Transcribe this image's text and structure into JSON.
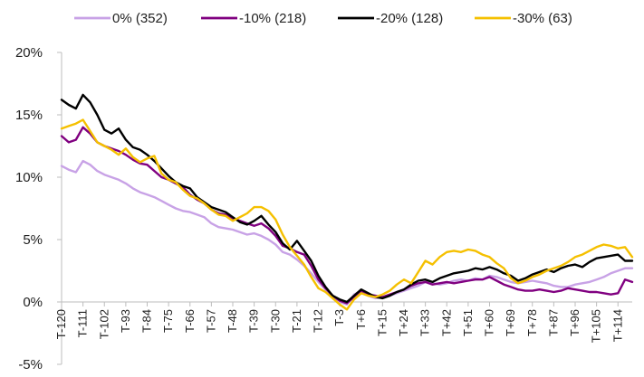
{
  "chart_data": {
    "type": "line",
    "title": "",
    "xlabel": "",
    "ylabel": "",
    "ylim": [
      -5,
      20
    ],
    "yticks": [
      -5,
      0,
      5,
      10,
      15,
      20
    ],
    "ytick_labels": [
      "-5%",
      "0%",
      "5%",
      "10%",
      "15%",
      "20%"
    ],
    "xlim": [
      -120,
      120
    ],
    "xticks": [
      -120,
      -111,
      -102,
      -93,
      -84,
      -75,
      -66,
      -57,
      -48,
      -39,
      -30,
      -21,
      -12,
      -3,
      6,
      15,
      24,
      33,
      42,
      51,
      60,
      69,
      78,
      87,
      96,
      105,
      114
    ],
    "xtick_labels": [
      "T-120",
      "T-111",
      "T-102",
      "T-93",
      "T-84",
      "T-75",
      "T-66",
      "T-57",
      "T-48",
      "T-39",
      "T-30",
      "T-21",
      "T-12",
      "T-3",
      "T+6",
      "T+15",
      "T+24",
      "T+33",
      "T+42",
      "T+51",
      "T+60",
      "T+69",
      "T+78",
      "T+87",
      "T+96",
      "T+105",
      "T+114"
    ],
    "legend_position": "top",
    "series": [
      {
        "name": "0% (352)",
        "color": "#c8a2e6",
        "x": [
          -120,
          -117,
          -114,
          -111,
          -108,
          -105,
          -102,
          -99,
          -96,
          -93,
          -90,
          -87,
          -84,
          -81,
          -78,
          -75,
          -72,
          -69,
          -66,
          -63,
          -60,
          -57,
          -54,
          -51,
          -48,
          -45,
          -42,
          -39,
          -36,
          -33,
          -30,
          -27,
          -24,
          -21,
          -18,
          -15,
          -12,
          -9,
          -6,
          -3,
          0,
          3,
          6,
          9,
          12,
          15,
          18,
          21,
          24,
          27,
          30,
          33,
          36,
          39,
          42,
          45,
          48,
          51,
          54,
          57,
          60,
          63,
          66,
          69,
          72,
          75,
          78,
          81,
          84,
          87,
          90,
          93,
          96,
          99,
          102,
          105,
          108,
          111,
          114,
          117,
          120
        ],
        "values": [
          10.9,
          10.6,
          10.4,
          11.3,
          11.0,
          10.5,
          10.2,
          10.0,
          9.8,
          9.5,
          9.1,
          8.8,
          8.6,
          8.4,
          8.1,
          7.8,
          7.5,
          7.3,
          7.2,
          7.0,
          6.8,
          6.3,
          6.0,
          5.9,
          5.8,
          5.6,
          5.4,
          5.5,
          5.3,
          5.0,
          4.6,
          4.0,
          3.8,
          3.4,
          2.9,
          2.3,
          1.6,
          1.0,
          0.3,
          0.0,
          -0.2,
          0.6,
          0.9,
          0.5,
          0.3,
          0.4,
          0.5,
          0.7,
          0.9,
          1.1,
          1.3,
          1.6,
          1.5,
          1.4,
          1.5,
          1.7,
          1.8,
          1.7,
          1.9,
          1.8,
          2.1,
          2.0,
          1.8,
          1.6,
          1.5,
          1.6,
          1.7,
          1.6,
          1.5,
          1.3,
          1.2,
          1.2,
          1.4,
          1.5,
          1.6,
          1.8,
          2.0,
          2.3,
          2.5,
          2.7,
          2.7
        ]
      },
      {
        "name": "-10% (218)",
        "color": "#800080",
        "x": [
          -120,
          -117,
          -114,
          -111,
          -108,
          -105,
          -102,
          -99,
          -96,
          -93,
          -90,
          -87,
          -84,
          -81,
          -78,
          -75,
          -72,
          -69,
          -66,
          -63,
          -60,
          -57,
          -54,
          -51,
          -48,
          -45,
          -42,
          -39,
          -36,
          -33,
          -30,
          -27,
          -24,
          -21,
          -18,
          -15,
          -12,
          -9,
          -6,
          -3,
          0,
          3,
          6,
          9,
          12,
          15,
          18,
          21,
          24,
          27,
          30,
          33,
          36,
          39,
          42,
          45,
          48,
          51,
          54,
          57,
          60,
          63,
          66,
          69,
          72,
          75,
          78,
          81,
          84,
          87,
          90,
          93,
          96,
          99,
          102,
          105,
          108,
          111,
          114,
          117,
          120
        ],
        "values": [
          13.3,
          12.8,
          13.0,
          14.0,
          13.5,
          12.8,
          12.5,
          12.3,
          12.1,
          11.8,
          11.4,
          11.1,
          11.0,
          10.5,
          10.0,
          9.8,
          9.5,
          9.2,
          8.6,
          8.2,
          7.9,
          7.4,
          7.1,
          7.0,
          6.7,
          6.5,
          6.3,
          6.1,
          6.3,
          5.9,
          5.3,
          4.5,
          4.3,
          4.0,
          3.8,
          2.9,
          1.8,
          1.1,
          0.5,
          0.1,
          -0.1,
          0.4,
          0.9,
          0.6,
          0.5,
          0.4,
          0.6,
          0.8,
          1.0,
          1.3,
          1.5,
          1.6,
          1.4,
          1.5,
          1.6,
          1.5,
          1.6,
          1.7,
          1.8,
          1.8,
          2.0,
          1.7,
          1.4,
          1.2,
          1.0,
          0.9,
          0.9,
          1.0,
          0.9,
          0.8,
          0.9,
          1.1,
          1.0,
          0.9,
          0.8,
          0.8,
          0.7,
          0.6,
          0.7,
          1.8,
          1.6
        ]
      },
      {
        "name": "-20% (128)",
        "color": "#000000",
        "x": [
          -120,
          -117,
          -114,
          -111,
          -108,
          -105,
          -102,
          -99,
          -96,
          -93,
          -90,
          -87,
          -84,
          -81,
          -78,
          -75,
          -72,
          -69,
          -66,
          -63,
          -60,
          -57,
          -54,
          -51,
          -48,
          -45,
          -42,
          -39,
          -36,
          -33,
          -30,
          -27,
          -24,
          -21,
          -18,
          -15,
          -12,
          -9,
          -6,
          -3,
          0,
          3,
          6,
          9,
          12,
          15,
          18,
          21,
          24,
          27,
          30,
          33,
          36,
          39,
          42,
          45,
          48,
          51,
          54,
          57,
          60,
          63,
          66,
          69,
          72,
          75,
          78,
          81,
          84,
          87,
          90,
          93,
          96,
          99,
          102,
          105,
          108,
          111,
          114,
          117,
          120
        ],
        "values": [
          16.2,
          15.8,
          15.5,
          16.6,
          16.0,
          15.0,
          13.8,
          13.5,
          13.9,
          13.0,
          12.4,
          12.2,
          11.8,
          11.3,
          10.7,
          10.1,
          9.6,
          9.3,
          9.1,
          8.4,
          8.0,
          7.6,
          7.4,
          7.2,
          6.8,
          6.4,
          6.2,
          6.5,
          6.9,
          6.2,
          5.6,
          4.7,
          4.2,
          4.9,
          4.1,
          3.3,
          2.1,
          1.2,
          0.5,
          0.2,
          0.0,
          0.5,
          1.0,
          0.7,
          0.4,
          0.3,
          0.5,
          0.8,
          1.0,
          1.4,
          1.7,
          1.8,
          1.6,
          1.9,
          2.1,
          2.3,
          2.4,
          2.5,
          2.7,
          2.6,
          2.8,
          2.6,
          2.3,
          2.1,
          1.7,
          1.9,
          2.2,
          2.4,
          2.6,
          2.4,
          2.7,
          2.9,
          3.0,
          2.8,
          3.2,
          3.5,
          3.6,
          3.7,
          3.8,
          3.3,
          3.3
        ]
      },
      {
        "name": "-30% (63)",
        "color": "#f5c000",
        "x": [
          -120,
          -117,
          -114,
          -111,
          -108,
          -105,
          -102,
          -99,
          -96,
          -93,
          -90,
          -87,
          -84,
          -81,
          -78,
          -75,
          -72,
          -69,
          -66,
          -63,
          -60,
          -57,
          -54,
          -51,
          -48,
          -45,
          -42,
          -39,
          -36,
          -33,
          -30,
          -27,
          -24,
          -21,
          -18,
          -15,
          -12,
          -9,
          -6,
          -3,
          0,
          3,
          6,
          9,
          12,
          15,
          18,
          21,
          24,
          27,
          30,
          33,
          36,
          39,
          42,
          45,
          48,
          51,
          54,
          57,
          60,
          63,
          66,
          69,
          72,
          75,
          78,
          81,
          84,
          87,
          90,
          93,
          96,
          99,
          102,
          105,
          108,
          111,
          114,
          117,
          120
        ],
        "values": [
          13.9,
          14.1,
          14.3,
          14.6,
          13.7,
          12.8,
          12.5,
          12.2,
          11.8,
          12.3,
          11.6,
          11.2,
          11.5,
          11.7,
          10.3,
          9.8,
          9.6,
          9.0,
          8.5,
          8.3,
          7.9,
          7.4,
          7.0,
          6.9,
          6.5,
          6.8,
          7.1,
          7.6,
          7.6,
          7.3,
          6.6,
          5.4,
          4.4,
          3.7,
          3.0,
          2.0,
          1.1,
          0.8,
          0.3,
          -0.2,
          -0.6,
          0.2,
          0.7,
          0.5,
          0.4,
          0.6,
          0.9,
          1.4,
          1.8,
          1.5,
          2.4,
          3.3,
          3.0,
          3.6,
          4.0,
          4.1,
          4.0,
          4.2,
          4.1,
          3.8,
          3.6,
          3.1,
          2.7,
          1.9,
          1.5,
          1.7,
          2.0,
          2.2,
          2.5,
          2.7,
          2.9,
          3.2,
          3.6,
          3.8,
          4.1,
          4.4,
          4.6,
          4.5,
          4.3,
          4.4,
          3.6
        ]
      }
    ]
  }
}
